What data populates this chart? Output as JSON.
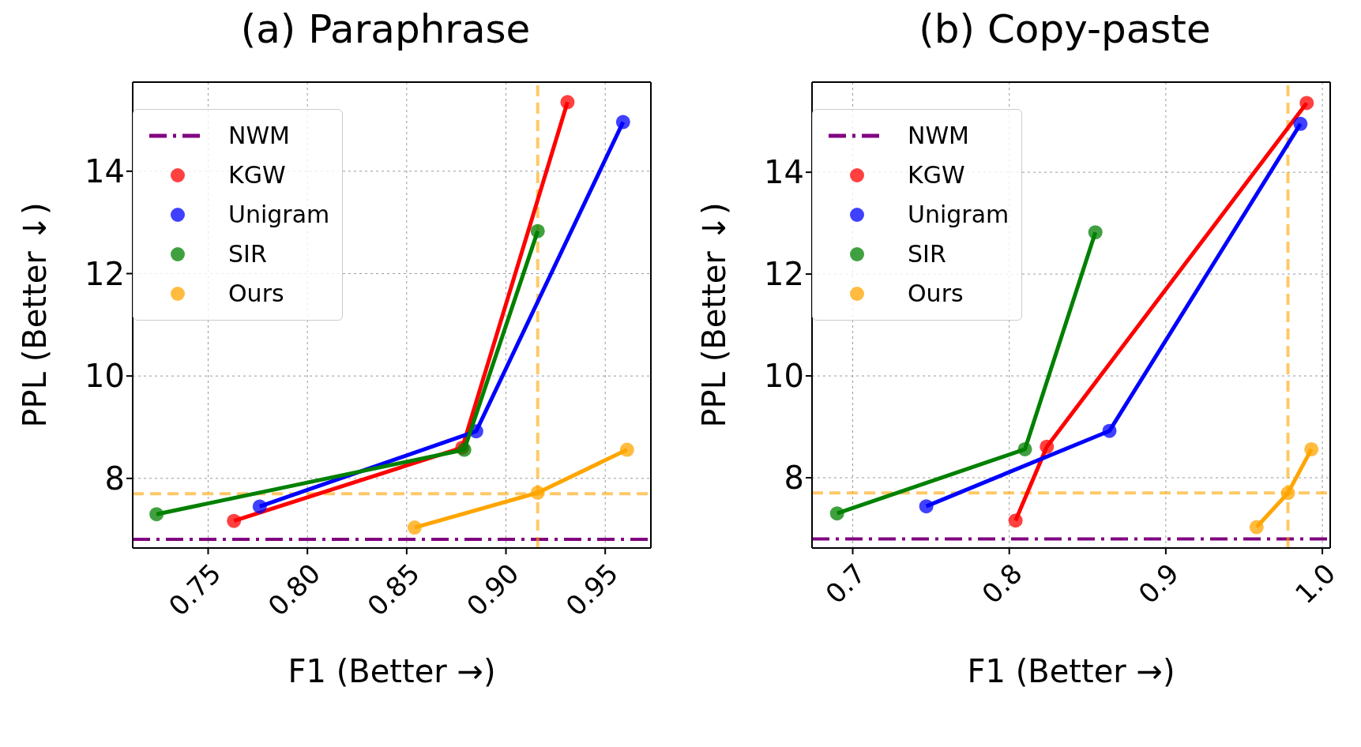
{
  "chart_data": [
    {
      "type": "line",
      "title": "(a) Paraphrase",
      "xlabel": "F1 (Better →)",
      "ylabel": "PPL (Better ↓)",
      "xlim": [
        0.712,
        0.973
      ],
      "xticks": [
        0.75,
        {
          "value": 0.8,
          "label": "0.80"
        },
        0.85,
        {
          "value": 0.9,
          "label": "0.90"
        },
        0.95
      ],
      "ylim": [
        6.64,
        15.74
      ],
      "yticks": [
        8,
        10,
        12,
        14
      ],
      "grid": true,
      "legend": "top left",
      "marker": "circle",
      "series": [
        {
          "name": "KGW",
          "color": "#ff0000",
          "x": [
            0.763,
            0.878,
            0.931
          ],
          "values": [
            7.17,
            8.6,
            15.35
          ]
        },
        {
          "name": "Unigram",
          "color": "#0000ff",
          "x": [
            0.776,
            0.885,
            0.959
          ],
          "values": [
            7.45,
            8.92,
            14.96
          ]
        },
        {
          "name": "SIR",
          "color": "#008000",
          "x": [
            0.724,
            0.879,
            0.916
          ],
          "values": [
            7.3,
            8.56,
            12.83
          ]
        },
        {
          "name": "Ours",
          "color": "#ffa500",
          "x": [
            0.854,
            0.916,
            0.961
          ],
          "values": [
            7.04,
            7.72,
            8.56
          ]
        }
      ],
      "ref_lines": [
        {
          "axis": "y",
          "value": 6.81,
          "label": "NWM",
          "color": "#800080",
          "line_style": "dashdot"
        },
        {
          "axis": "y",
          "value": 7.7,
          "color": "#ffa500",
          "line_style": "dashed"
        },
        {
          "axis": "x",
          "value": 0.916,
          "color": "#ffa500",
          "line_style": "dashed"
        }
      ]
    },
    {
      "type": "line",
      "title": "(b) Copy-paste",
      "xlabel": "F1 (Better →)",
      "ylabel": "PPL (Better ↓)",
      "xlim": [
        0.674,
        1.005
      ],
      "xticks": [
        0.7,
        0.8,
        0.9,
        {
          "value": 1.0,
          "label": "1.0"
        }
      ],
      "ylim": [
        6.62,
        15.77
      ],
      "yticks": [
        8,
        10,
        12,
        14
      ],
      "grid": true,
      "legend": "top left",
      "marker": "circle",
      "series": [
        {
          "name": "KGW",
          "color": "#ff0000",
          "x": [
            0.804,
            0.824,
            0.99
          ],
          "values": [
            7.16,
            8.61,
            15.36
          ]
        },
        {
          "name": "Unigram",
          "color": "#0000ff",
          "x": [
            0.747,
            0.864,
            0.986
          ],
          "values": [
            7.44,
            8.92,
            14.95
          ]
        },
        {
          "name": "SIR",
          "color": "#008000",
          "x": [
            0.69,
            0.81,
            0.855
          ],
          "values": [
            7.3,
            8.56,
            12.82
          ]
        },
        {
          "name": "Ours",
          "color": "#ffa500",
          "x": [
            0.958,
            0.978,
            0.993
          ],
          "values": [
            7.03,
            7.7,
            8.56
          ]
        }
      ],
      "ref_lines": [
        {
          "axis": "y",
          "value": 6.8,
          "label": "NWM",
          "color": "#800080",
          "line_style": "dashdot"
        },
        {
          "axis": "y",
          "value": 7.7,
          "color": "#ffa500",
          "line_style": "dashed"
        },
        {
          "axis": "x",
          "value": 0.978,
          "color": "#ffa500",
          "line_style": "dashed"
        }
      ]
    }
  ]
}
